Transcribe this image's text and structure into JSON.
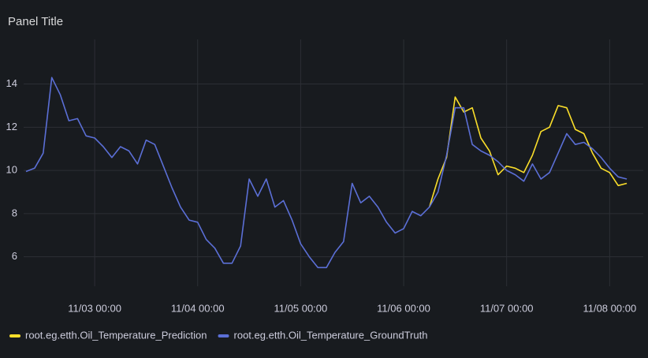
{
  "chart_data": {
    "type": "line",
    "title": "Panel Title",
    "x_start": "11/02 08:00",
    "x_step_hours": 2,
    "xlim": [
      "11/02 08:00",
      "11/08 06:00"
    ],
    "xticks": [
      "11/03 00:00",
      "11/04 00:00",
      "11/05 00:00",
      "11/06 00:00",
      "11/07 00:00",
      "11/08 00:00"
    ],
    "ylim": [
      5,
      15.7
    ],
    "yticks": [
      6,
      8,
      10,
      12,
      14
    ],
    "grid": true,
    "series": [
      {
        "name": "root.eg.etth.Oil_Temperature_Prediction",
        "color": "#fade2a",
        "values": [
          null,
          null,
          null,
          null,
          null,
          null,
          null,
          null,
          null,
          null,
          null,
          null,
          null,
          null,
          null,
          null,
          null,
          null,
          null,
          null,
          null,
          null,
          null,
          null,
          null,
          null,
          null,
          null,
          null,
          null,
          null,
          null,
          null,
          null,
          null,
          null,
          null,
          null,
          null,
          null,
          null,
          null,
          null,
          null,
          null,
          null,
          null,
          8.3,
          9.6,
          10.6,
          13.4,
          12.7,
          12.9,
          11.5,
          10.9,
          9.8,
          10.2,
          10.1,
          9.9,
          10.7,
          11.8,
          12.0,
          13.0,
          12.9,
          11.9,
          11.7,
          10.8,
          10.1,
          9.9,
          9.3,
          9.4
        ]
      },
      {
        "name": "root.eg.etth.Oil_Temperature_GroundTruth",
        "color": "#5b6fd6",
        "values": [
          9.95,
          10.1,
          10.8,
          14.3,
          13.5,
          12.3,
          12.4,
          11.6,
          11.5,
          11.1,
          10.6,
          11.1,
          10.9,
          10.3,
          11.4,
          11.2,
          10.2,
          9.2,
          8.3,
          7.7,
          7.6,
          6.8,
          6.4,
          5.7,
          5.7,
          6.5,
          9.6,
          8.8,
          9.6,
          8.3,
          8.6,
          7.7,
          6.6,
          6.0,
          5.5,
          5.5,
          6.2,
          6.7,
          9.4,
          8.5,
          8.8,
          8.3,
          7.6,
          7.1,
          7.3,
          8.1,
          7.9,
          8.3,
          9.0,
          10.7,
          12.9,
          12.9,
          11.2,
          10.9,
          10.7,
          10.4,
          10.0,
          9.8,
          9.5,
          10.3,
          9.6,
          9.9,
          10.8,
          11.7,
          11.2,
          11.3,
          11.0,
          10.6,
          10.1,
          9.7,
          9.6
        ]
      }
    ]
  }
}
